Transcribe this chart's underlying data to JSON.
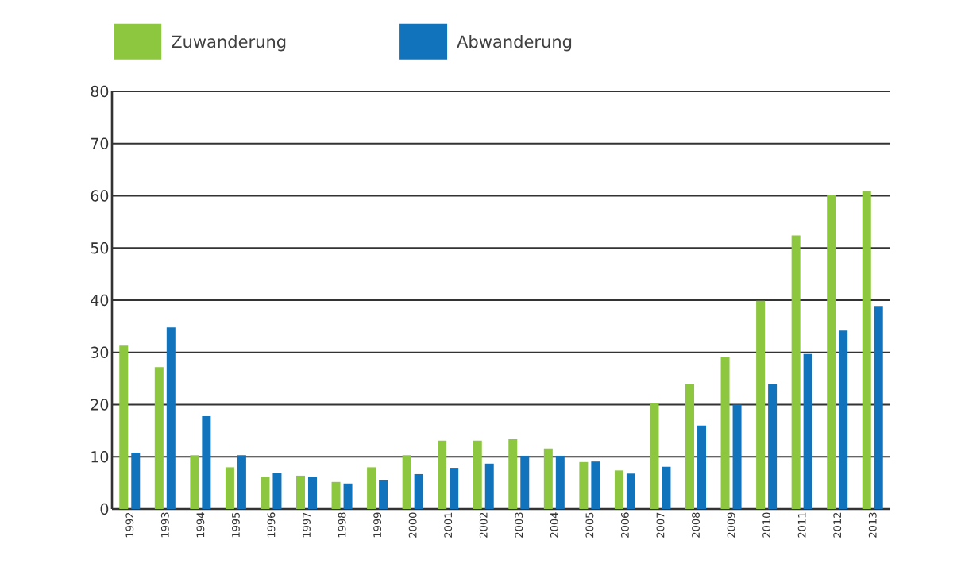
{
  "chart_data": {
    "type": "bar",
    "categories": [
      "1992",
      "1993",
      "1994",
      "1995",
      "1996",
      "1997",
      "1998",
      "1999",
      "2000",
      "2001",
      "2002",
      "2003",
      "2004",
      "2005",
      "2006",
      "2007",
      "2008",
      "2009",
      "2010",
      "2011",
      "2012",
      "2013"
    ],
    "series": [
      {
        "name": "Zuwanderung",
        "color": "#8dc63f",
        "values": [
          31.3,
          27.2,
          10.3,
          8.0,
          6.2,
          6.4,
          5.2,
          8.0,
          10.3,
          13.1,
          13.1,
          13.4,
          11.6,
          9.0,
          7.4,
          20.3,
          24.0,
          29.2,
          39.9,
          52.4,
          60.1,
          60.9
        ]
      },
      {
        "name": "Abwanderung",
        "color": "#1173bb",
        "values": [
          10.8,
          34.8,
          17.8,
          10.3,
          7.0,
          6.2,
          4.9,
          5.5,
          6.7,
          7.9,
          8.7,
          10.2,
          10.2,
          9.1,
          6.8,
          8.1,
          16.0,
          20.0,
          23.9,
          29.7,
          34.2,
          38.9
        ]
      }
    ],
    "ylim": [
      0,
      80
    ],
    "yticks": [
      0,
      10,
      20,
      30,
      40,
      50,
      60,
      70,
      80
    ],
    "grid": "y",
    "legend": "top left"
  }
}
